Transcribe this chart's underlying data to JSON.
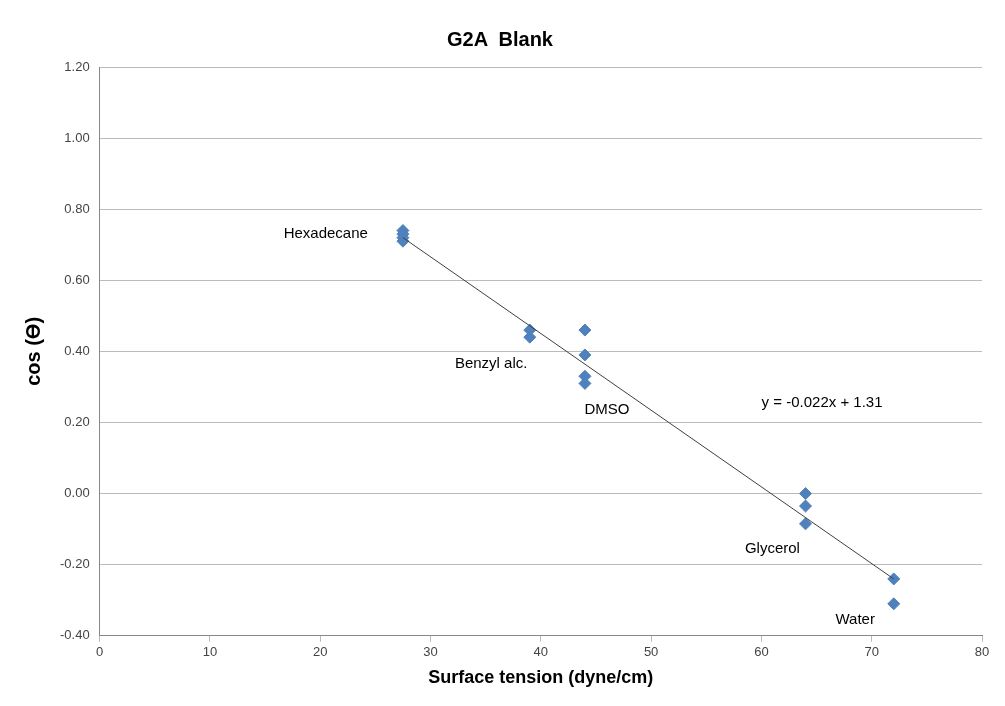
{
  "chart_data": {
    "type": "scatter",
    "title": "G2A  Blank",
    "xlabel": "Surface tension (dyne/cm)",
    "ylabel": "cos (ϴ)",
    "xlim": [
      0,
      80
    ],
    "xticks": [
      0,
      10,
      20,
      30,
      40,
      50,
      60,
      70,
      80
    ],
    "ylim": [
      -0.4,
      1.2
    ],
    "yticks": [
      {
        "value": -0.4,
        "label": "-0.40"
      },
      {
        "value": -0.2,
        "label": "-0.20"
      },
      {
        "value": 0,
        "label": "0.00"
      },
      {
        "value": 0.2,
        "label": "0.20"
      },
      {
        "value": 0.4,
        "label": "0.40"
      },
      {
        "value": 0.6,
        "label": "0.60"
      },
      {
        "value": 0.8,
        "label": "0.80"
      },
      {
        "value": 1.0,
        "label": "1.00"
      },
      {
        "value": 1.2,
        "label": "1.20"
      }
    ],
    "grid": "y",
    "legend": false,
    "series": [
      {
        "marker": "diamond",
        "color": "#4f81bd",
        "x": [
          27.5,
          27.5,
          27.5,
          27.5,
          39,
          39,
          44,
          44,
          44,
          44,
          64,
          64,
          64,
          72,
          72
        ],
        "values": [
          0.74,
          0.73,
          0.72,
          0.71,
          0.46,
          0.44,
          0.46,
          0.39,
          0.33,
          0.31,
          0.0,
          -0.035,
          -0.085,
          -0.24,
          -0.31
        ]
      },
      {
        "type": "line",
        "marker": "none",
        "color": "#404040",
        "x": [
          27.5,
          72
        ],
        "values": [
          0.72,
          -0.24
        ]
      }
    ],
    "annotations": [
      "Hexadecane",
      "Benzyl alc.",
      "DMSO",
      "y = -0.022x + 1.31",
      "Glycerol",
      "Water"
    ]
  }
}
